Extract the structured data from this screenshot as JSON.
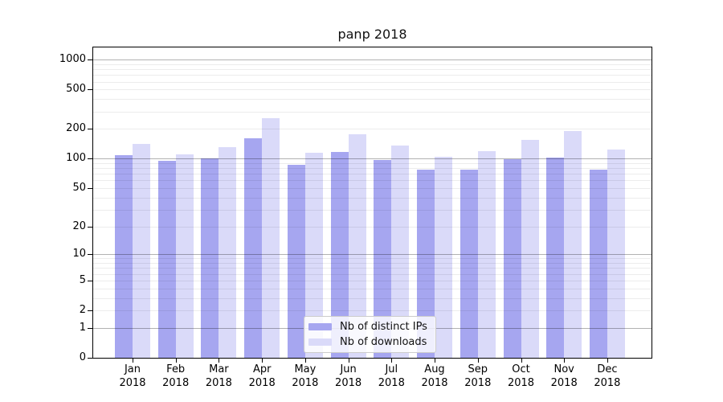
{
  "chart_data": {
    "type": "bar",
    "title": "panp 2018",
    "categories": [
      "Jan",
      "Feb",
      "Mar",
      "Apr",
      "May",
      "Jun",
      "Jul",
      "Aug",
      "Sep",
      "Oct",
      "Nov",
      "Dec"
    ],
    "x_tick_year": "2018",
    "series": [
      {
        "name": "Nb of distinct IPs",
        "color": "#a6a6f0",
        "values": [
          109,
          95,
          101,
          160,
          87,
          116,
          97,
          78,
          77,
          98,
          102,
          78
        ]
      },
      {
        "name": "Nb of downloads",
        "color": "#dadaf9",
        "values": [
          141,
          110,
          130,
          256,
          114,
          177,
          136,
          104,
          119,
          155,
          189,
          124
        ]
      }
    ],
    "xlabel": "",
    "ylabel": "",
    "y_scale": "log10(1+x)",
    "y_ticks": [
      0,
      1,
      2,
      5,
      10,
      20,
      50,
      100,
      200,
      500,
      1000
    ],
    "major_gridlines": [
      1,
      10,
      100,
      1000
    ],
    "minor_gridlines": [
      2,
      3,
      4,
      5,
      6,
      7,
      8,
      9,
      20,
      30,
      40,
      50,
      60,
      70,
      80,
      90,
      200,
      300,
      400,
      500,
      600,
      700,
      800,
      900
    ],
    "ylim": [
      0,
      1340
    ],
    "grid": true,
    "legend_position": "lower center"
  }
}
